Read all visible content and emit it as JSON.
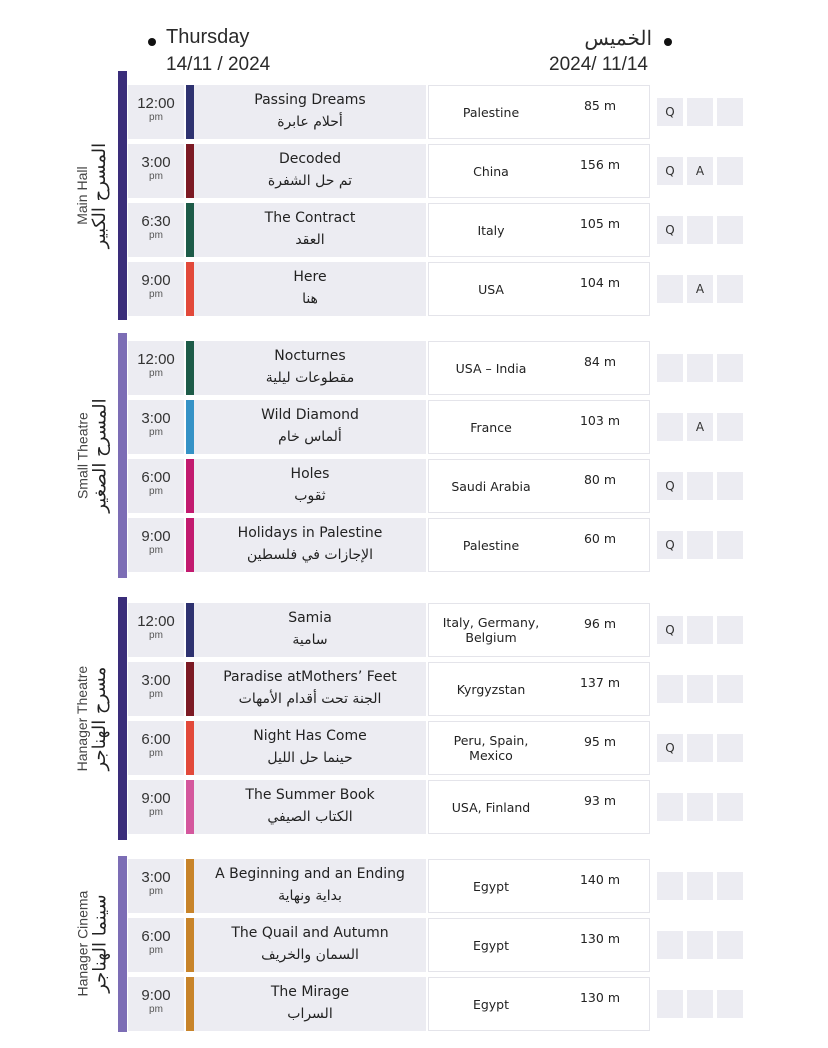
{
  "header": {
    "day_en": "Thursday",
    "date_en": "14/11 / 2024",
    "day_ar": "الخميس",
    "date_ar": "2024/ 11/14"
  },
  "colors": {
    "navy": "#2e3270",
    "maroon": "#7c1a24",
    "teal": "#1d5b48",
    "orange_red": "#e2493a",
    "sky_blue": "#3592c6",
    "magenta": "#c21a6f",
    "pink": "#d4579d",
    "ochre": "#c8842a",
    "venue_dark": "#3a2d7a",
    "venue_light": "#7c6db5"
  },
  "venues": [
    {
      "name_en": "Main Hall",
      "name_ar": "المسرح الكبير",
      "bar_color": "#3a2d7a",
      "screenings": [
        {
          "time": "12:00",
          "period": "pm",
          "color": "#2e3270",
          "title_en": "Passing Dreams",
          "title_ar": "أحلام عابرة",
          "country": "Palestine",
          "duration": "85 m",
          "marks": [
            "Q",
            "",
            ""
          ]
        },
        {
          "time": "3:00",
          "period": "pm",
          "color": "#7c1a24",
          "title_en": "Decoded",
          "title_ar": "تم حل الشفرة",
          "country": "China",
          "duration": "156 m",
          "marks": [
            "Q",
            "A",
            ""
          ]
        },
        {
          "time": "6:30",
          "period": "pm",
          "color": "#1d5b48",
          "title_en": "The Contract",
          "title_ar": "العقد",
          "country": "Italy",
          "duration": "105 m",
          "marks": [
            "Q",
            "",
            ""
          ]
        },
        {
          "time": "9:00",
          "period": "pm",
          "color": "#e2493a",
          "title_en": "Here",
          "title_ar": "هنا",
          "country": "USA",
          "duration": "104 m",
          "marks": [
            "",
            "A",
            ""
          ]
        }
      ]
    },
    {
      "name_en": "Small Theatre",
      "name_ar": "المسرح الصغير",
      "bar_color": "#7c6db5",
      "screenings": [
        {
          "time": "12:00",
          "period": "pm",
          "color": "#1d5b48",
          "title_en": "Nocturnes",
          "title_ar": "مقطوعات ليلية",
          "country": "USA – India",
          "duration": "84 m",
          "marks": [
            "",
            "",
            ""
          ]
        },
        {
          "time": "3:00",
          "period": "pm",
          "color": "#3592c6",
          "title_en": "Wild Diamond",
          "title_ar": "ألماس خام",
          "country": "France",
          "duration": "103 m",
          "marks": [
            "",
            "A",
            ""
          ]
        },
        {
          "time": "6:00",
          "period": "pm",
          "color": "#c21a6f",
          "title_en": "Holes",
          "title_ar": "ثقوب",
          "country": "Saudi Arabia",
          "duration": "80 m",
          "marks": [
            "Q",
            "",
            ""
          ]
        },
        {
          "time": "9:00",
          "period": "pm",
          "color": "#c21a6f",
          "title_en": "Holidays in Palestine",
          "title_ar": "الإجازات في فلسطين",
          "country": "Palestine",
          "duration": "60 m",
          "marks": [
            "Q",
            "",
            ""
          ]
        }
      ]
    },
    {
      "name_en": "Hanager Theatre",
      "name_ar": "مسرح الهناجر",
      "bar_color": "#3a2d7a",
      "screenings": [
        {
          "time": "12:00",
          "period": "pm",
          "color": "#2e3270",
          "title_en": "Samia",
          "title_ar": "سامية",
          "country": "Italy, Germany, Belgium",
          "duration": "96 m",
          "marks": [
            "Q",
            "",
            ""
          ]
        },
        {
          "time": "3:00",
          "period": "pm",
          "color": "#7c1a24",
          "title_en": "Paradise atMothers’ Feet",
          "title_ar": "الجنة تحت أقدام الأمهات",
          "country": "Kyrgyzstan",
          "duration": "137 m",
          "marks": [
            "",
            "",
            ""
          ]
        },
        {
          "time": "6:00",
          "period": "pm",
          "color": "#e2493a",
          "title_en": "Night Has Come",
          "title_ar": "حينما حل الليل",
          "country": "Peru, Spain, Mexico",
          "duration": "95 m",
          "marks": [
            "Q",
            "",
            ""
          ]
        },
        {
          "time": "9:00",
          "period": "pm",
          "color": "#d4579d",
          "title_en": "The Summer Book",
          "title_ar": "الكتاب الصيفي",
          "country": "USA, Finland",
          "duration": "93 m",
          "marks": [
            "",
            "",
            ""
          ]
        }
      ]
    },
    {
      "name_en": "Hanager Cinema",
      "name_ar": "سينما الهناجر",
      "bar_color": "#7c6db5",
      "screenings": [
        {
          "time": "3:00",
          "period": "pm",
          "color": "#c8842a",
          "title_en": "A Beginning and an Ending",
          "title_ar": "بداية ونهاية",
          "country": "Egypt",
          "duration": "140 m",
          "marks": [
            "",
            "",
            ""
          ]
        },
        {
          "time": "6:00",
          "period": "pm",
          "color": "#c8842a",
          "title_en": "The Quail and Autumn",
          "title_ar": "السمان والخريف",
          "country": "Egypt",
          "duration": "130 m",
          "marks": [
            "",
            "",
            ""
          ]
        },
        {
          "time": "9:00",
          "period": "pm",
          "color": "#c8842a",
          "title_en": "The Mirage",
          "title_ar": "السراب",
          "country": "Egypt",
          "duration": "130 m",
          "marks": [
            "",
            "",
            ""
          ]
        }
      ]
    }
  ]
}
